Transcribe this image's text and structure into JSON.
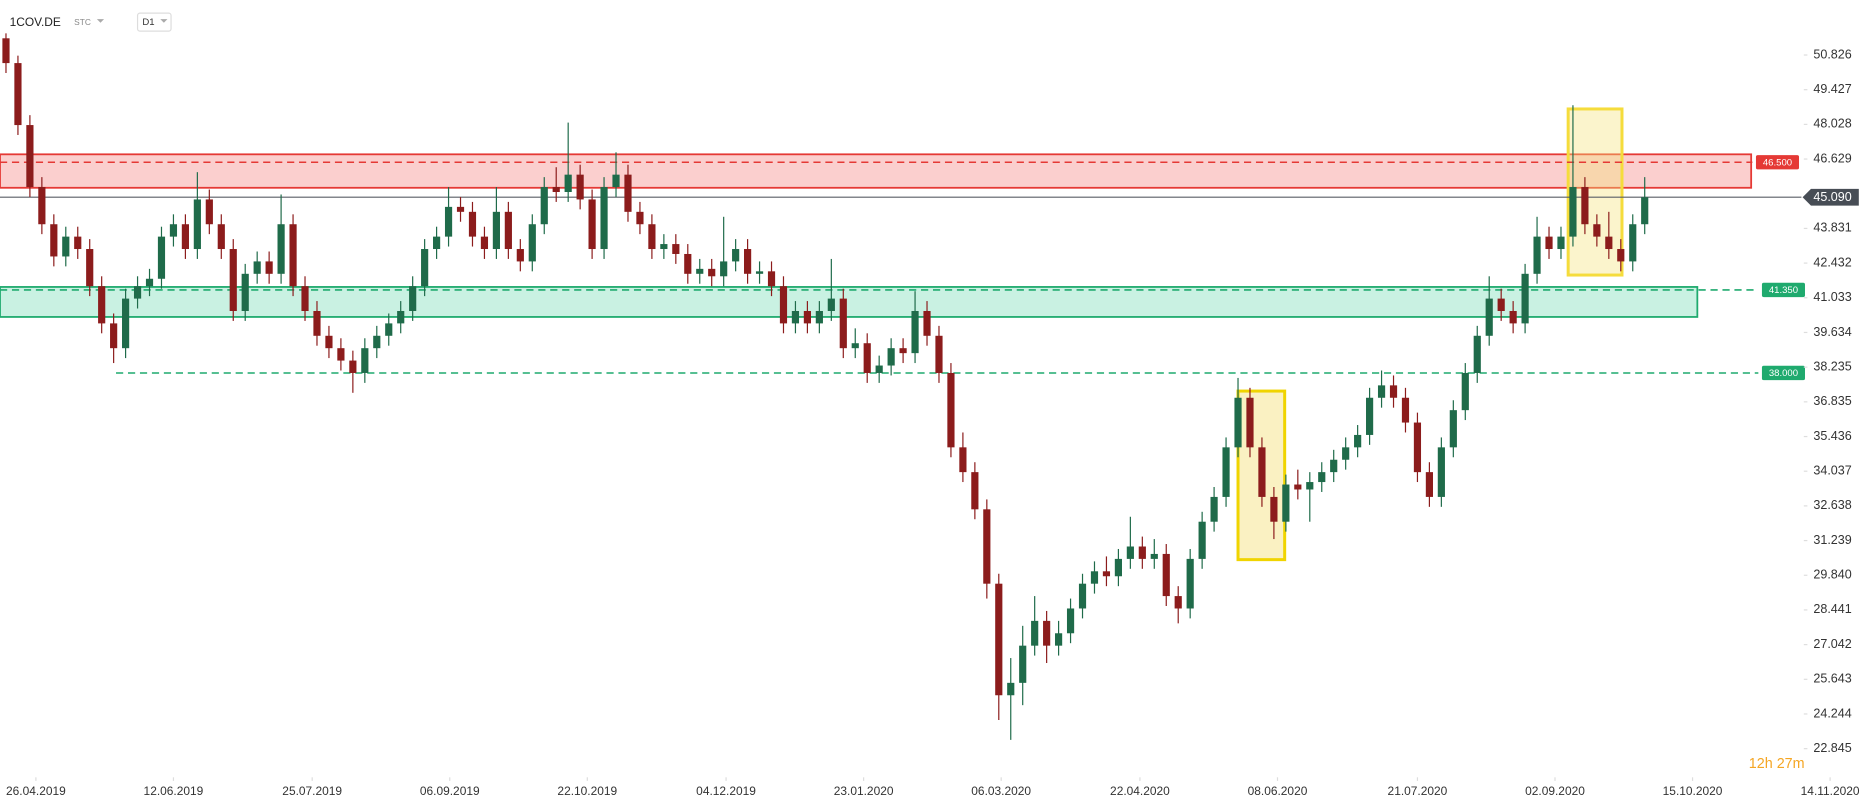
{
  "chart_data": {
    "type": "candlestick",
    "title": "1COV.DE",
    "subtitle": "STC",
    "timeframe": "D1",
    "countdown": "12h 27m",
    "up_color": "#1f6b4a",
    "down_color": "#8c1c1c",
    "xlim": [
      -0.5,
      155.5
    ],
    "ylim": [
      21.69,
      53.045
    ],
    "xticks": [
      {
        "value": 2.5,
        "label": "26.04.2019"
      },
      {
        "value": 14,
        "label": "12.06.2019"
      },
      {
        "value": 25.6,
        "label": "25.07.2019"
      },
      {
        "value": 37.1,
        "label": "06.09.2019"
      },
      {
        "value": 48.6,
        "label": "22.10.2019"
      },
      {
        "value": 60.2,
        "label": "04.12.2019"
      },
      {
        "value": 71.7,
        "label": "23.01.2020"
      },
      {
        "value": 83.2,
        "label": "06.03.2020"
      },
      {
        "value": 94.8,
        "label": "22.04.2020"
      },
      {
        "value": 106.3,
        "label": "08.06.2020"
      },
      {
        "value": 118,
        "label": "21.07.2020"
      },
      {
        "value": 129.5,
        "label": "02.09.2020"
      },
      {
        "value": 141,
        "label": "15.10.2020"
      },
      {
        "value": 152.5,
        "label": "14.11.2020"
      }
    ],
    "yticks": [
      22.845,
      24.244,
      25.643,
      27.042,
      28.441,
      {
        "value": 29.84,
        "label": "29.840"
      },
      31.239,
      32.638,
      34.037,
      35.436,
      36.835,
      38.235,
      39.634,
      41.033,
      42.432,
      43.831,
      46.629,
      48.028,
      49.427,
      50.826
    ],
    "last_price": {
      "value": 45.09,
      "label": "45.090"
    },
    "levels": [
      {
        "value": 46.5,
        "label": "46.500",
        "color": "#e53935",
        "x": [
          -0.5,
          146
        ]
      },
      {
        "value": 41.35,
        "label": "41.350",
        "color": "#1faa6e",
        "x": [
          -0.5,
          146.5
        ]
      },
      {
        "value": 38,
        "label": "38.000",
        "color": "#1faa6e",
        "x": [
          9.2,
          146.5
        ]
      }
    ],
    "zones": [
      {
        "y": [
          45.47,
          46.82
        ],
        "x": [
          -0.5,
          145.9
        ],
        "color": "#e53935",
        "fill": "rgba(239,83,80,0.28)"
      },
      {
        "y": [
          40.26,
          41.47
        ],
        "x": [
          -0.5,
          141.4
        ],
        "color": "#1faa6e",
        "fill": "rgba(38,198,140,0.25)"
      },
      {
        "y": [
          41.95,
          48.65
        ],
        "x": [
          130.6,
          135.1
        ],
        "color": "#f5dc3c",
        "fill": "rgba(245,225,120,0.38)"
      },
      {
        "y": [
          30.47,
          37.27
        ],
        "x": [
          103,
          106.9
        ],
        "color": "#f0d400",
        "fill": "rgba(245,225,120,0.45)"
      }
    ],
    "open": [
      51.5,
      50.5,
      48,
      45.5,
      44,
      42.7,
      43.5,
      43,
      41.5,
      40,
      39,
      41,
      41.5,
      41.8,
      43.5,
      44,
      43,
      45,
      44,
      43,
      40.5,
      42,
      42.5,
      42,
      44,
      41.5,
      40.5,
      39.5,
      39,
      38.5,
      38,
      39,
      39.5,
      40,
      40.5,
      41.5,
      43,
      43.5,
      44.7,
      44.5,
      43.5,
      43,
      44.5,
      43,
      42.5,
      44,
      45.5,
      45.3,
      46,
      45,
      43,
      45.5,
      46,
      44.5,
      44,
      43,
      43.2,
      42.8,
      42,
      42.2,
      41.9,
      42.5,
      43,
      42,
      42.1,
      41.5,
      40,
      40.5,
      40,
      40.5,
      41,
      39,
      39.2,
      38,
      38.3,
      39,
      38.8,
      40.5,
      39.5,
      38,
      35,
      34,
      32.5,
      29.5,
      25,
      25.5,
      27,
      28,
      27,
      27.5,
      28.5,
      29.5,
      30,
      29.8,
      30.5,
      31,
      30.5,
      30.7,
      29,
      28.5,
      30.5,
      32,
      33,
      35,
      37,
      35,
      33,
      32,
      33.5,
      33.3,
      33.6,
      34,
      34.5,
      35,
      35.5,
      37,
      37.5,
      37,
      36,
      34,
      33,
      35,
      36.5,
      38,
      39.5,
      41,
      40.5,
      40,
      42,
      43.5,
      43,
      43.5,
      45.5,
      44,
      43.5,
      43,
      42.5,
      44
    ],
    "high": [
      51.7,
      50.8,
      48.4,
      45.9,
      44.4,
      43.9,
      43.9,
      43.4,
      41.9,
      40.4,
      41.4,
      41.9,
      42.2,
      43.9,
      44.4,
      44.4,
      46.1,
      45.4,
      44.4,
      43.4,
      42.4,
      42.9,
      42.9,
      45.2,
      44.4,
      41.9,
      40.9,
      39.9,
      39.4,
      38.9,
      39.4,
      39.9,
      40.4,
      40.9,
      41.9,
      43.4,
      43.9,
      45.5,
      45.1,
      44.9,
      43.9,
      45.5,
      44.9,
      43.4,
      44.4,
      45.9,
      46.3,
      48.1,
      46.4,
      45.4,
      45.9,
      46.9,
      46.4,
      44.9,
      44.4,
      43.6,
      43.6,
      43.2,
      42.6,
      42.6,
      44.3,
      43.4,
      43.4,
      42.5,
      42.5,
      41.9,
      40.9,
      40.9,
      40.9,
      42.6,
      41.4,
      39.8,
      39.6,
      38.7,
      39.4,
      39.4,
      41.3,
      40.9,
      39.9,
      38.4,
      35.6,
      34.4,
      32.9,
      29.9,
      26.5,
      27.8,
      29.0,
      28.4,
      28.0,
      28.9,
      29.9,
      30.4,
      30.6,
      30.9,
      32.2,
      31.4,
      31.3,
      31.1,
      29.4,
      30.9,
      32.4,
      33.4,
      35.4,
      37.8,
      37.4,
      35.4,
      33.4,
      33.9,
      34.1,
      34.0,
      34.4,
      34.9,
      35.4,
      35.9,
      37.4,
      38.1,
      37.9,
      37.4,
      36.4,
      34.4,
      35.4,
      36.9,
      38.4,
      39.9,
      41.9,
      41.4,
      40.9,
      42.4,
      44.3,
      43.9,
      43.9,
      48.8,
      45.9,
      44.4,
      44.5,
      43.4,
      44.4,
      45.9
    ],
    "low": [
      50.1,
      47.6,
      45.1,
      43.6,
      42.3,
      42.3,
      42.6,
      41.1,
      39.6,
      38.4,
      38.6,
      40.6,
      41.1,
      41.4,
      43.1,
      42.6,
      42.6,
      43.6,
      42.6,
      40.1,
      40.1,
      41.6,
      41.6,
      41.6,
      41.1,
      40.1,
      39.1,
      38.6,
      38.1,
      37.2,
      37.6,
      38.6,
      39.1,
      39.6,
      40.1,
      41.1,
      42.6,
      43.1,
      44.1,
      43.1,
      42.6,
      42.6,
      42.6,
      42.1,
      42.1,
      43.6,
      44.9,
      44.9,
      44.6,
      42.6,
      42.6,
      45.1,
      44.1,
      43.6,
      42.6,
      42.6,
      42.4,
      41.6,
      41.6,
      41.5,
      41.5,
      42.1,
      41.6,
      41.6,
      41.1,
      39.6,
      39.6,
      39.6,
      39.6,
      40.1,
      38.6,
      38.6,
      37.6,
      37.6,
      37.9,
      38.4,
      38.4,
      39.1,
      37.6,
      34.6,
      33.6,
      32.1,
      28.9,
      24.0,
      23.2,
      24.6,
      26.6,
      26.3,
      26.6,
      27.1,
      28.1,
      29.1,
      29.4,
      29.4,
      30.1,
      30.1,
      30.1,
      28.6,
      27.9,
      28.1,
      30.1,
      31.6,
      32.6,
      34.6,
      34.6,
      32.6,
      31.3,
      31.6,
      32.9,
      32.0,
      33.2,
      33.6,
      34.1,
      34.6,
      35.1,
      36.6,
      36.6,
      35.6,
      33.6,
      32.6,
      32.6,
      34.6,
      36.1,
      37.6,
      39.1,
      40.1,
      39.6,
      39.6,
      41.6,
      42.6,
      42.6,
      43.1,
      43.6,
      43.1,
      42.6,
      42.1,
      42.1,
      43.6
    ],
    "close": [
      50.5,
      48,
      45.5,
      44,
      42.7,
      43.5,
      43,
      41.5,
      40,
      39,
      41,
      41.5,
      41.8,
      43.5,
      44,
      43,
      45,
      44,
      43,
      40.5,
      42,
      42.5,
      42,
      44,
      41.5,
      40.5,
      39.5,
      39,
      38.5,
      38,
      39,
      39.5,
      40,
      40.5,
      41.5,
      43,
      43.5,
      44.7,
      44.5,
      43.5,
      43,
      44.5,
      43,
      42.5,
      44,
      45.5,
      45.3,
      46,
      45,
      43,
      45.5,
      46,
      44.5,
      44,
      43,
      43.2,
      42.8,
      42,
      42.2,
      41.9,
      42.5,
      43,
      42,
      42.1,
      41.5,
      40,
      40.5,
      40,
      40.5,
      41,
      39,
      39.2,
      38,
      38.3,
      39,
      38.8,
      40.5,
      39.5,
      38,
      35,
      34,
      32.5,
      29.5,
      25,
      25.5,
      27,
      28,
      27,
      27.5,
      28.5,
      29.5,
      30,
      29.8,
      30.5,
      31,
      30.5,
      30.7,
      29,
      28.5,
      30.5,
      32,
      33,
      35,
      37,
      35,
      33,
      32,
      33.5,
      33.3,
      33.6,
      34,
      34.5,
      35,
      35.5,
      37,
      37.5,
      37,
      36,
      34,
      33,
      35,
      36.5,
      38,
      39.5,
      41,
      40.5,
      40,
      42,
      43.5,
      43,
      43.5,
      45.5,
      44,
      43.5,
      43,
      42.5,
      44,
      45.09
    ]
  }
}
